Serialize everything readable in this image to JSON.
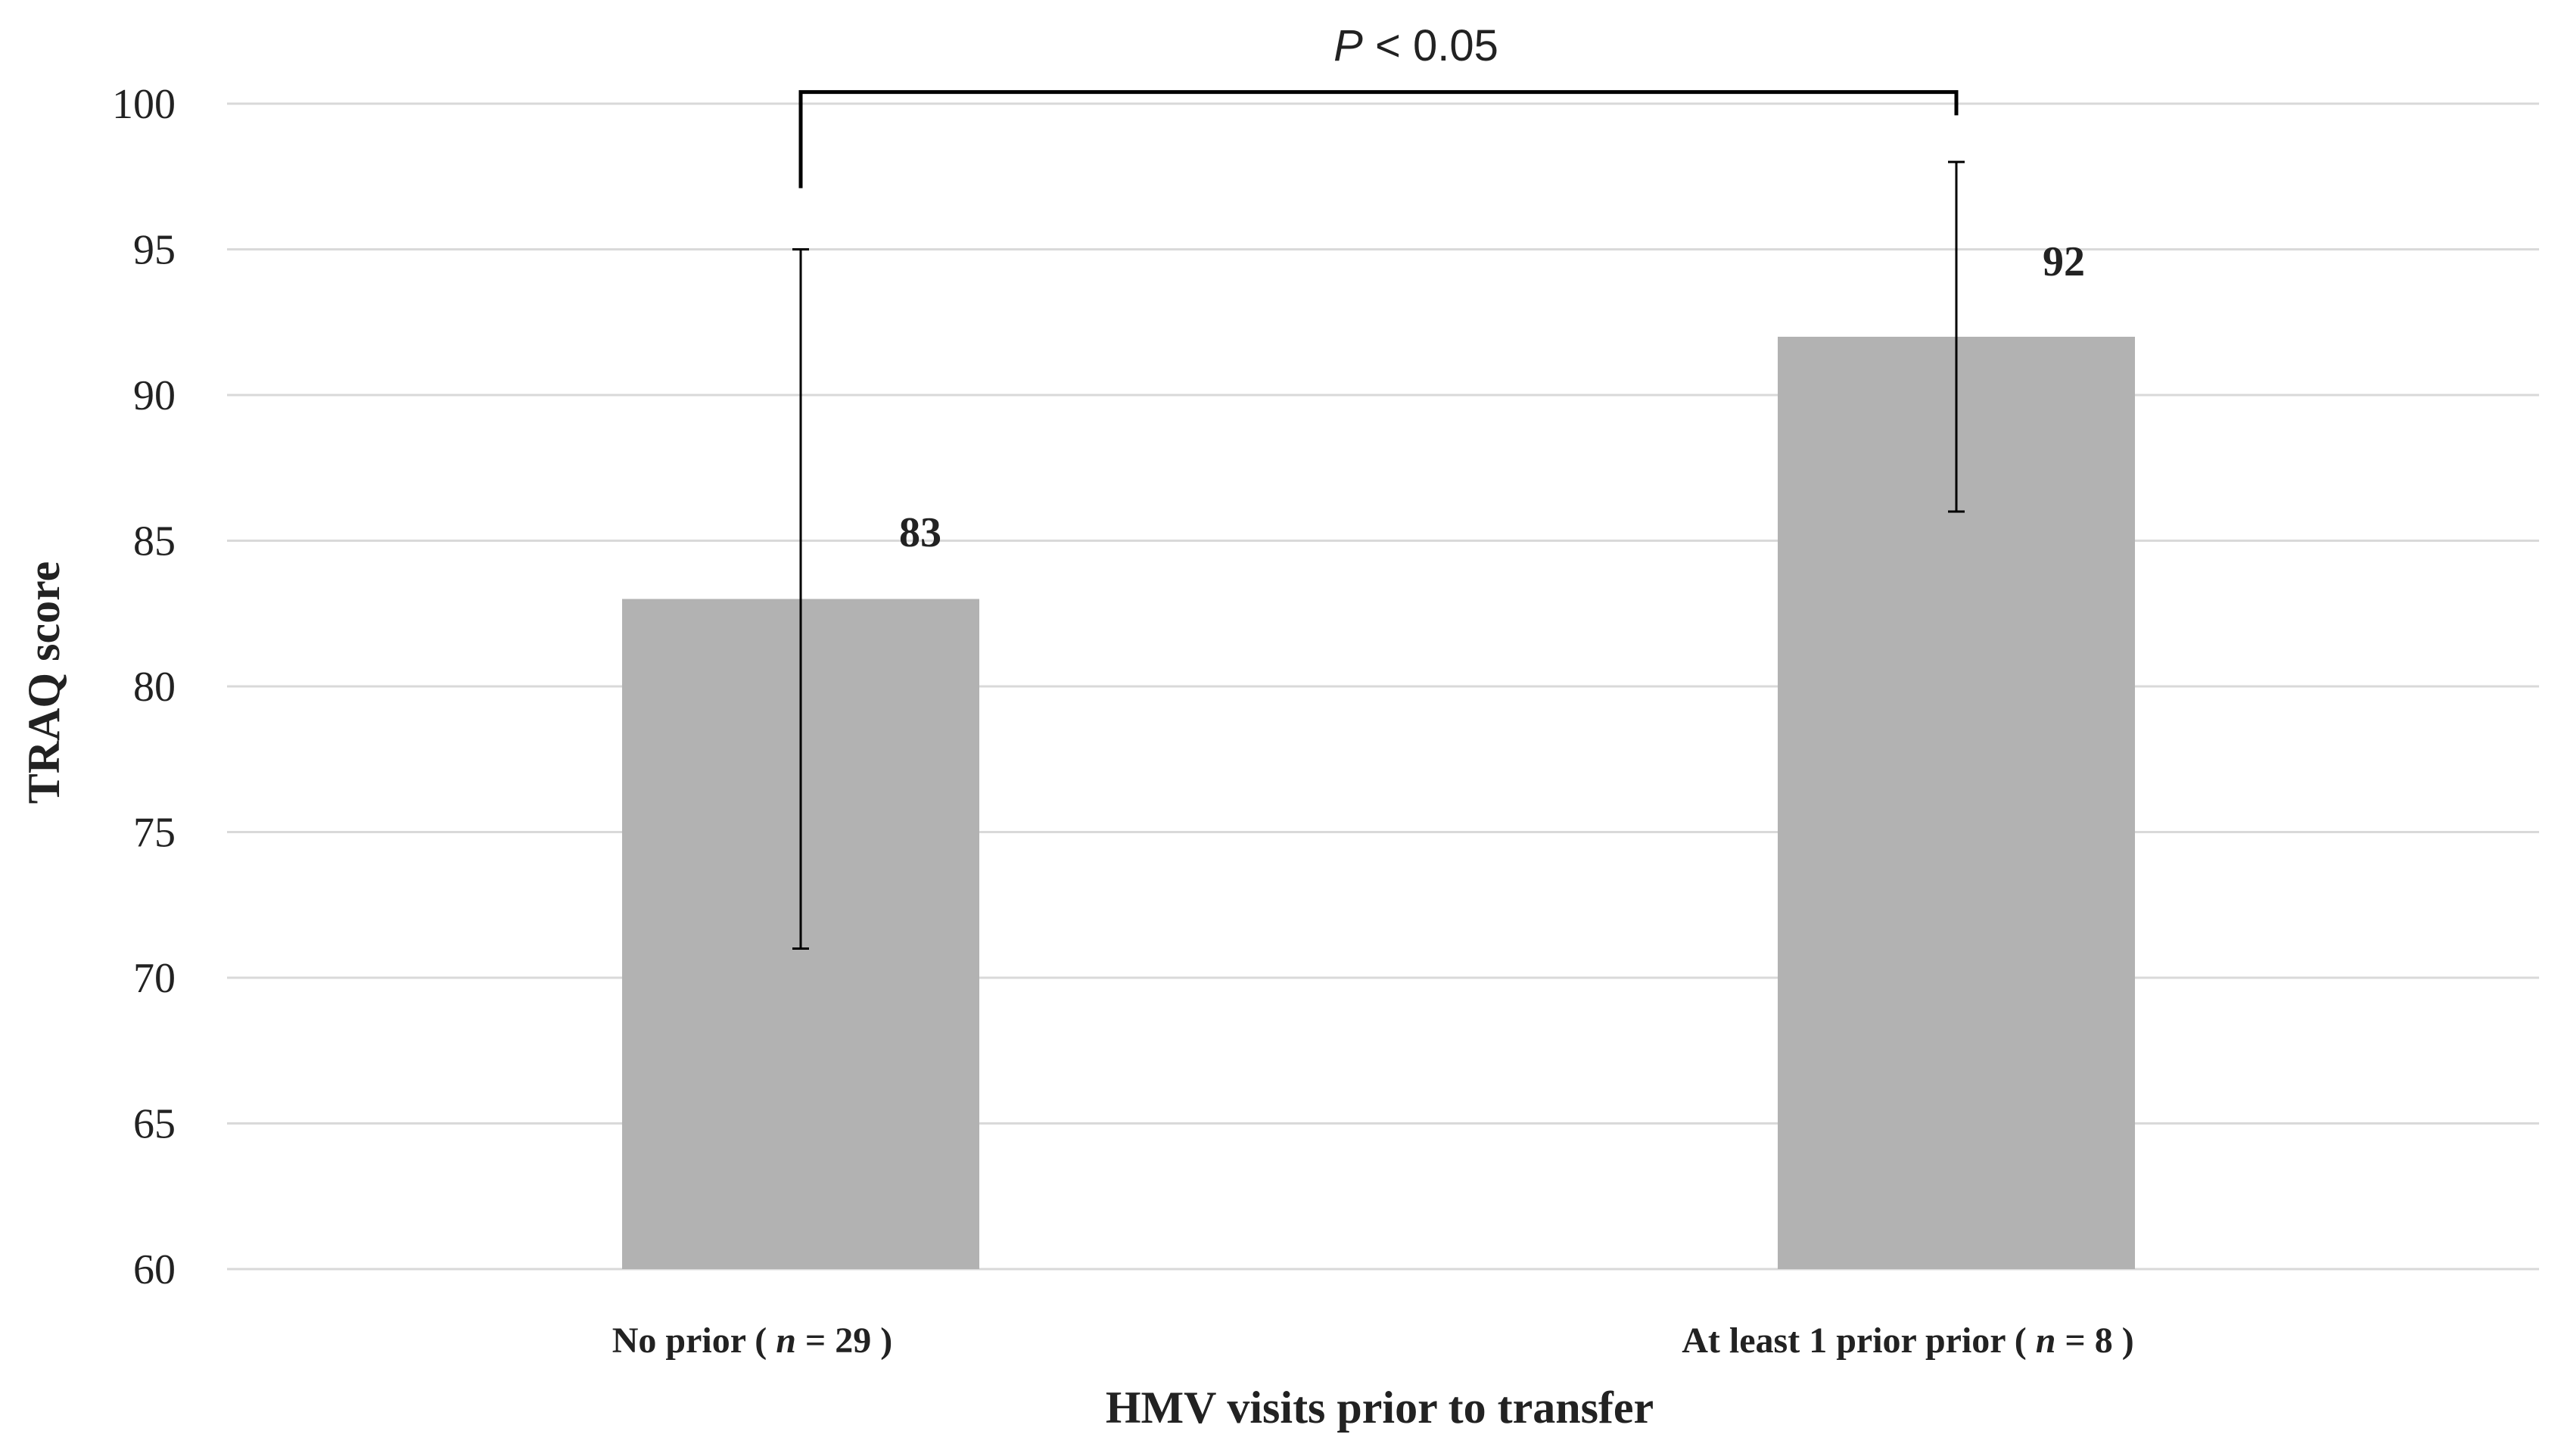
{
  "chart_data": {
    "type": "bar",
    "categories": [
      {
        "name": "No prior",
        "n_label": "n",
        "n_value": "29"
      },
      {
        "name": "At least 1 prior prior",
        "n_label": "n",
        "n_value": "8"
      }
    ],
    "values": [
      83,
      92
    ],
    "data_labels": [
      "83",
      "92"
    ],
    "error_bars": [
      {
        "low": 71,
        "high": 95
      },
      {
        "low": 86,
        "high": 98
      }
    ],
    "ylim": [
      60,
      100
    ],
    "yticks": [
      60,
      65,
      70,
      75,
      80,
      85,
      90,
      95,
      100
    ],
    "ylabel": "TRAQ score",
    "xlabel": "HMV visits prior to transfer",
    "significance": {
      "p_symbol": "P",
      "text": " < 0.05",
      "between": [
        0,
        1
      ],
      "bracket_y": 100.4,
      "left_drop_to": 97.1,
      "right_drop_to": 99.6
    },
    "grid": true,
    "legend": "none",
    "colors": {
      "bar": "#b2b2b2",
      "grid": "#d9d9d9",
      "error": "#000000"
    }
  }
}
